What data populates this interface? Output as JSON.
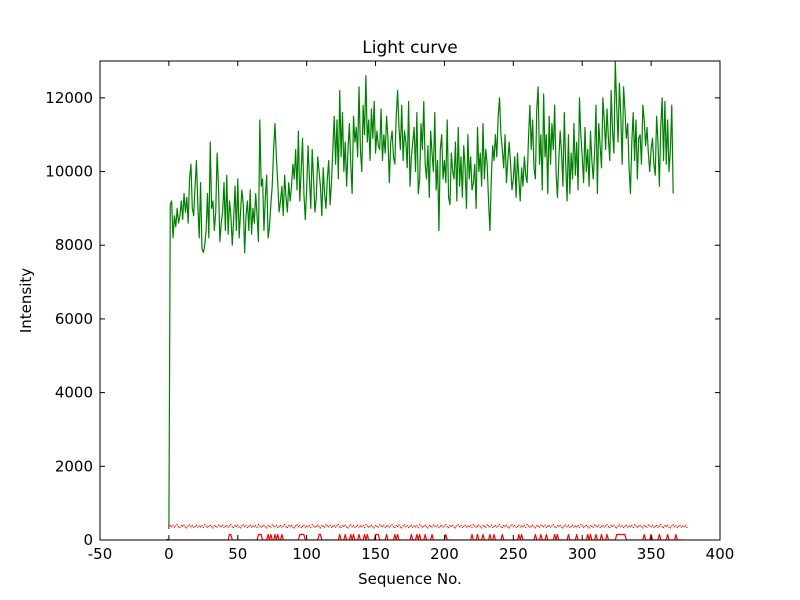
{
  "chart_data": {
    "type": "line",
    "title": "Light curve",
    "xlabel": "Sequence No.",
    "ylabel": "Intensity",
    "xlim": [
      -50,
      400
    ],
    "ylim": [
      0,
      13000
    ],
    "xticks": [
      "-50",
      "0",
      "50",
      "100",
      "150",
      "200",
      "250",
      "300",
      "350",
      "400"
    ],
    "yticks": [
      "0",
      "2000",
      "4000",
      "6000",
      "8000",
      "10000",
      "12000"
    ],
    "grid": false,
    "legend": false,
    "colors": {
      "signal": "#008000",
      "background": "#ff0000",
      "marker": "#0000ff"
    },
    "series": [
      {
        "style": "solid",
        "color": "#008000",
        "x_start": 0,
        "x_step": 1,
        "values": [
          300,
          9100,
          9200,
          8200,
          8800,
          8500,
          9000,
          8600,
          8800,
          9200,
          8700,
          9400,
          8900,
          9300,
          8600,
          9800,
          10200,
          9000,
          8800,
          9600,
          10300,
          9100,
          8200,
          9700,
          7900,
          7800,
          8000,
          8400,
          9400,
          8200,
          10800,
          9000,
          9200,
          8400,
          8900,
          10500,
          9600,
          8100,
          8600,
          8900,
          9700,
          8400,
          9900,
          8300,
          9200,
          8800,
          8000,
          8700,
          9600,
          8400,
          9800,
          8200,
          8900,
          9500,
          9100,
          7800,
          8800,
          9200,
          8400,
          9500,
          8300,
          9000,
          8600,
          9400,
          8800,
          8100,
          11400,
          9600,
          9800,
          8400,
          9300,
          9900,
          8200,
          8500,
          9100,
          9600,
          10600,
          11300,
          10400,
          9700,
          8900,
          9200,
          9600,
          8800,
          9900,
          9300,
          8900,
          9700,
          9200,
          9600,
          10200,
          9800,
          10600,
          9500,
          11100,
          9200,
          10000,
          10900,
          9400,
          8700,
          9500,
          10700,
          9800,
          9000,
          10600,
          9800,
          8900,
          9300,
          10400,
          10000,
          9600,
          8800,
          10100,
          9400,
          9000,
          9800,
          10300,
          9100,
          9700,
          10600,
          11500,
          10200,
          11400,
          9800,
          12200,
          10400,
          11600,
          10000,
          10800,
          9600,
          10600,
          11300,
          10200,
          9400,
          11500,
          10800,
          11200,
          10400,
          12300,
          10600,
          10000,
          11800,
          11000,
          12600,
          10800,
          11400,
          10300,
          11700,
          10900,
          11900,
          10500,
          11100,
          10700,
          10600,
          11700,
          10300,
          11000,
          10500,
          11500,
          10900,
          9700,
          10800,
          11100,
          10400,
          10200,
          11500,
          12200,
          11200,
          10600,
          11800,
          10300,
          11100,
          10800,
          10100,
          11900,
          9600,
          10400,
          10800,
          11200,
          10000,
          11600,
          9400,
          9800,
          11300,
          10600,
          11900,
          10200,
          9800,
          10700,
          9300,
          11100,
          10500,
          10000,
          11600,
          9500,
          10300,
          8400,
          10600,
          11000,
          9800,
          10300,
          9700,
          11400,
          9300,
          9100,
          10500,
          10000,
          9800,
          10800,
          9200,
          11200,
          9600,
          10400,
          9300,
          10700,
          10100,
          9000,
          11000,
          9800,
          10400,
          9500,
          9700,
          10200,
          9000,
          11200,
          10000,
          10500,
          9600,
          11300,
          9800,
          10600,
          10200,
          9200,
          8400,
          9800,
          10700,
          10300,
          11000,
          10400,
          11500,
          12000,
          11000,
          10600,
          10100,
          11000,
          9700,
          10300,
          10800,
          10200,
          9500,
          9800,
          10400,
          9300,
          10500,
          9800,
          9200,
          10100,
          9600,
          10400,
          9900,
          9700,
          10900,
          11800,
          10600,
          11400,
          10100,
          9800,
          11700,
          12300,
          10200,
          11000,
          9500,
          12100,
          10400,
          11000,
          9400,
          11500,
          10200,
          11300,
          10600,
          11800,
          10000,
          9300,
          10300,
          11100,
          10500,
          9600,
          11600,
          10200,
          9200,
          11000,
          9400,
          10500,
          9800,
          11300,
          9900,
          10800,
          9500,
          12000,
          11000,
          10400,
          9700,
          11200,
          10000,
          10600,
          9600,
          11100,
          10300,
          9800,
          10500,
          11800,
          9400,
          11300,
          10700,
          10100,
          12000,
          11400,
          10600,
          11700,
          10900,
          10300,
          12200,
          11100,
          10500,
          13000,
          11800,
          10800,
          12400,
          11500,
          10200,
          12300,
          11700,
          10900,
          11300,
          10100,
          9400,
          10800,
          11600,
          10300,
          11400,
          9800,
          10900,
          11000,
          10200,
          11800,
          11400,
          10700,
          11200,
          10500,
          10000,
          10600,
          10900,
          10200,
          9900,
          11500,
          10800,
          9600,
          11200,
          12000,
          10300,
          11900,
          10200,
          11400,
          10000,
          10600,
          11800,
          9400
        ]
      },
      {
        "style": "dotted",
        "color": "#ff0000",
        "x_start": 0,
        "x_step": 1,
        "values": [
          370,
          390,
          360,
          400,
          350,
          380,
          420,
          360,
          340,
          390,
          370,
          400,
          350,
          330,
          380,
          410,
          360,
          390,
          340,
          370,
          400,
          350,
          380,
          360,
          390,
          340,
          420,
          380,
          350,
          370,
          400,
          360,
          330,
          390,
          370,
          350,
          410,
          380,
          360,
          400,
          340,
          370,
          390,
          350,
          380,
          420,
          360,
          340,
          390,
          370,
          400,
          350,
          330,
          380,
          410,
          360,
          390,
          340,
          370,
          400,
          350,
          380,
          360,
          390,
          340,
          420,
          380,
          350,
          370,
          400,
          360,
          330,
          390,
          370,
          350,
          410,
          380,
          360,
          400,
          340,
          370,
          390,
          350,
          380,
          420,
          360,
          340,
          390,
          370,
          400,
          350,
          330,
          380,
          410,
          360,
          390,
          340,
          370,
          400,
          350,
          380,
          360,
          390,
          340,
          420,
          380,
          350,
          370,
          400,
          360,
          330,
          390,
          370,
          350,
          410,
          380,
          360,
          400,
          340,
          370,
          390,
          350,
          380,
          420,
          360,
          340,
          390,
          370,
          400,
          350,
          330,
          380,
          410,
          360,
          390,
          340,
          370,
          400,
          350,
          380,
          360,
          390,
          340,
          420,
          380,
          350,
          370,
          400,
          360,
          330,
          390,
          370,
          350,
          410,
          380,
          360,
          400,
          340,
          370,
          390,
          350,
          380,
          420,
          360,
          340,
          390,
          370,
          400,
          350,
          330,
          380,
          410,
          360,
          390,
          340,
          370,
          400,
          350,
          380,
          360,
          390,
          340,
          420,
          380,
          350,
          370,
          400,
          360,
          330,
          390,
          370,
          350,
          410,
          380,
          360,
          400,
          340,
          370,
          390,
          350,
          380,
          420,
          360,
          340,
          390,
          370,
          400,
          350,
          330,
          380,
          410,
          360,
          390,
          340,
          370,
          400,
          350,
          380,
          360,
          390,
          340,
          420,
          380,
          350,
          370,
          400,
          360,
          330,
          390,
          370,
          350,
          410,
          380,
          360,
          400,
          340,
          370,
          390,
          350,
          380,
          420,
          360,
          340,
          390,
          370,
          400,
          350,
          330,
          380,
          410,
          360,
          390,
          340,
          370,
          400,
          350,
          380,
          360,
          390,
          340,
          420,
          380,
          350,
          370,
          400,
          360,
          330,
          390,
          370,
          350,
          410,
          380,
          360,
          400,
          340,
          370,
          390,
          350,
          380,
          420,
          360,
          340,
          390,
          370,
          400,
          350,
          330,
          380,
          410,
          360,
          390,
          340,
          370,
          400,
          350,
          380,
          360,
          390,
          340,
          420,
          380,
          350,
          370,
          400,
          360,
          330,
          390,
          370,
          350,
          410,
          380,
          360,
          400,
          340,
          370,
          390,
          350,
          380,
          420,
          360,
          340,
          390,
          370,
          400,
          350,
          330,
          380,
          410,
          360,
          390,
          340,
          370,
          400,
          350,
          380,
          360,
          390,
          340,
          420,
          380,
          350,
          370,
          400,
          360,
          330,
          390,
          370,
          350,
          410,
          380,
          360,
          400,
          340,
          370,
          390,
          350,
          380,
          420,
          360,
          340,
          390,
          370,
          400,
          350,
          330,
          380,
          410,
          360,
          390,
          340,
          370,
          400,
          350,
          380,
          360,
          390,
          340
        ]
      },
      {
        "style": "solid",
        "color": "#ff0000",
        "x_start": 0,
        "x_step": 1,
        "peaks": [
          44,
          45,
          65,
          66,
          67,
          72,
          74,
          77,
          79,
          82,
          95,
          96,
          97,
          98,
          109,
          110,
          124,
          128,
          132,
          134,
          138,
          142,
          144,
          150,
          151,
          152,
          158,
          164,
          166,
          176,
          180,
          182,
          186,
          191,
          201,
          220,
          224,
          228,
          233,
          236,
          242,
          254,
          256,
          266,
          270,
          274,
          280,
          282,
          290,
          296,
          304,
          306,
          310,
          314,
          318,
          325,
          326,
          327,
          328,
          329,
          330,
          331,
          345,
          350,
          356,
          362,
          368
        ],
        "peak_value": 150,
        "base_value": 0,
        "length": 375
      },
      {
        "style": "solid",
        "color": "#0000ff",
        "x": [
          -2,
          0
        ],
        "values": [
          0,
          0
        ]
      }
    ]
  }
}
